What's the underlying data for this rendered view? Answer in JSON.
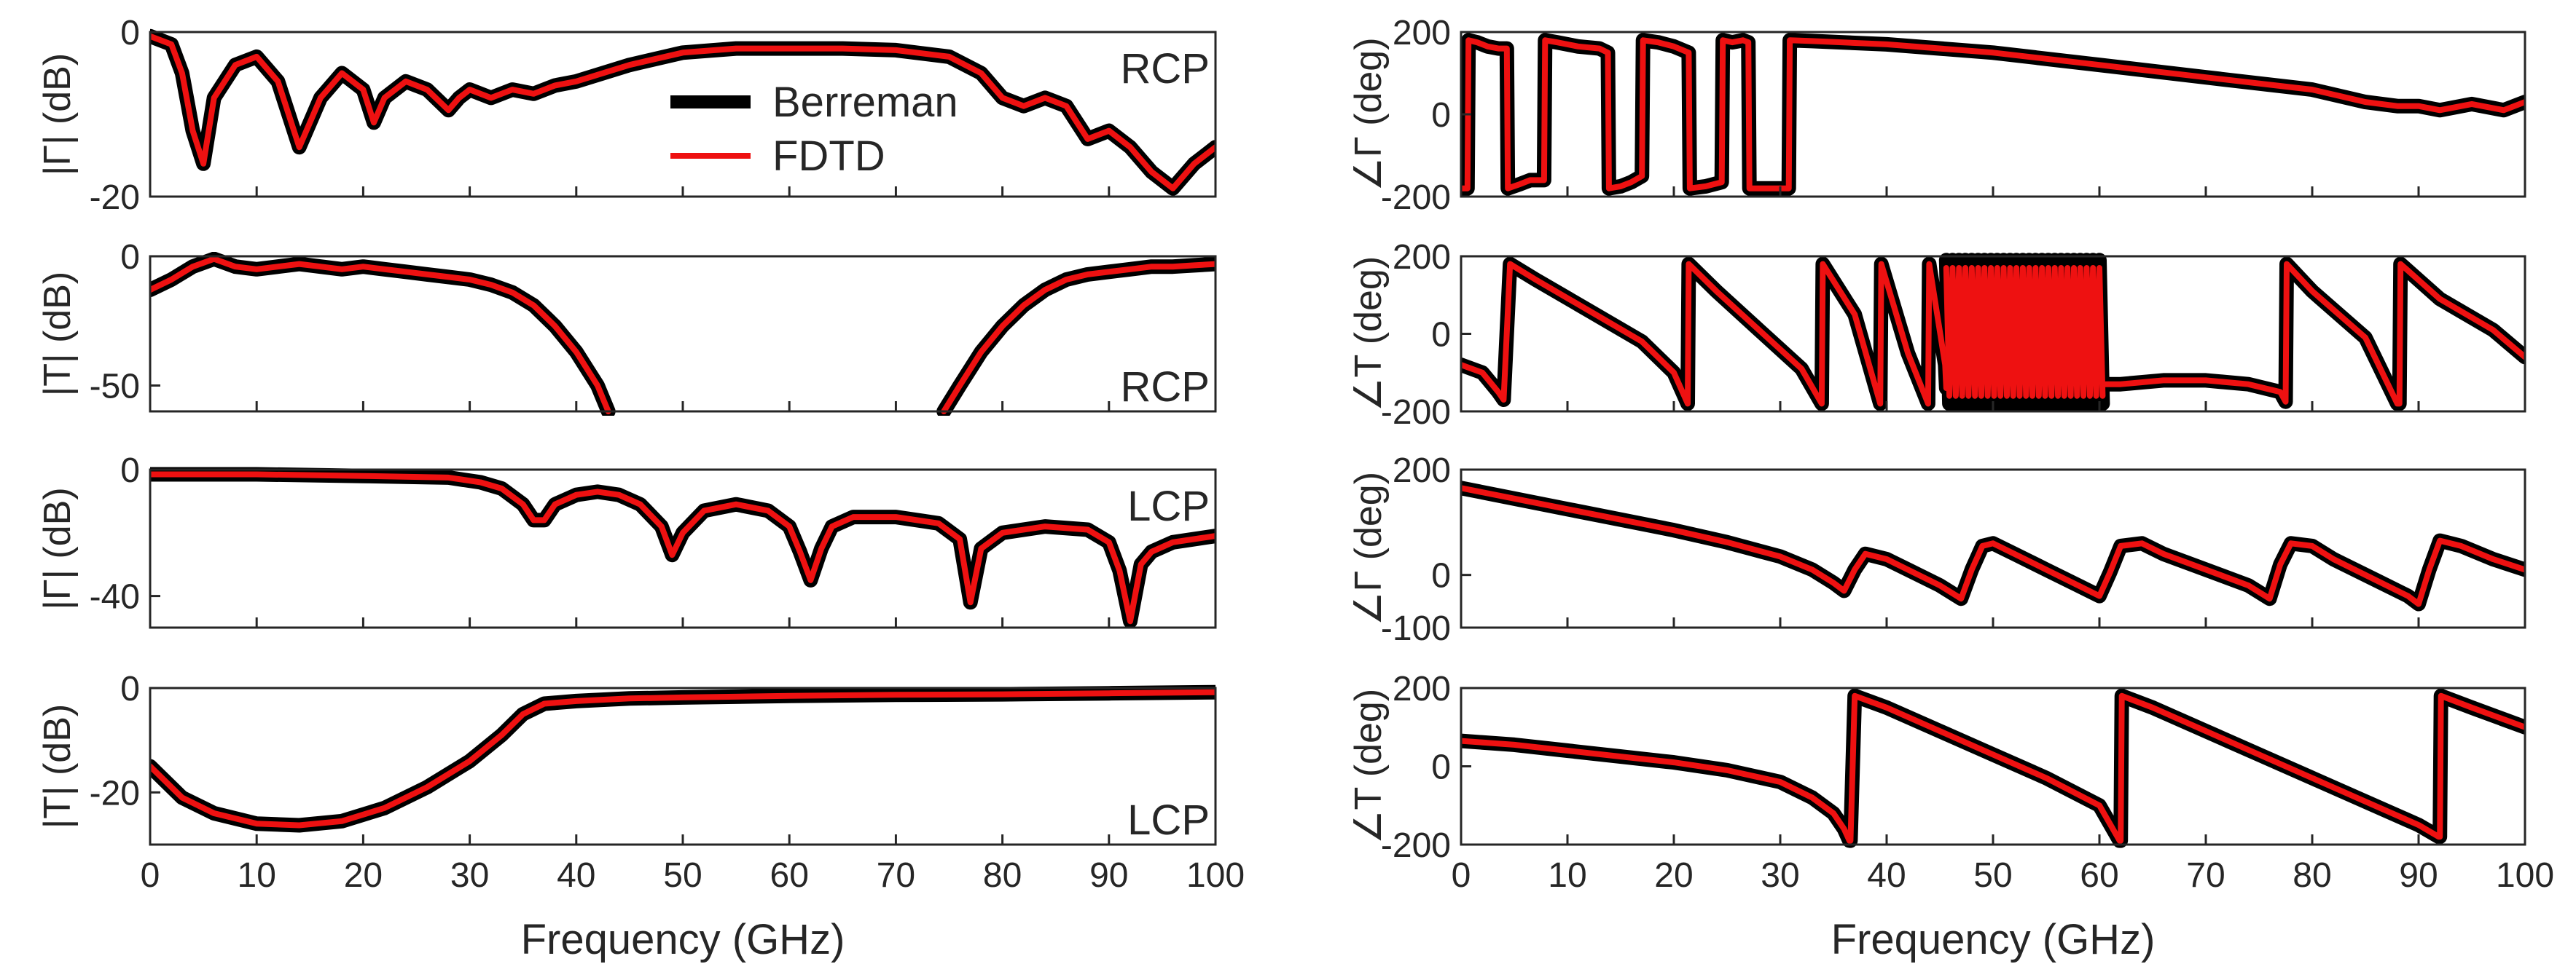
{
  "colors": {
    "berreman": "#000000",
    "fdtd": "#ee1111",
    "axis": "#262626"
  },
  "legend": {
    "entries": [
      {
        "label": "Berreman",
        "series": "berreman"
      },
      {
        "label": "FDTD",
        "series": "fdtd"
      }
    ]
  },
  "chart_data": [
    {
      "id": "mag-r-rcp",
      "type": "line",
      "tag": "RCP",
      "ylabel": "|Γ| (dB)",
      "xlim": [
        0,
        100
      ],
      "ylim": [
        -20,
        0
      ],
      "yticks": [
        -20,
        0
      ],
      "xticks": [],
      "xlabel": "",
      "series_keys": [
        "berreman",
        "fdtd"
      ],
      "x": [
        0,
        2,
        3,
        4,
        5,
        6,
        8,
        10,
        12,
        14,
        16,
        18,
        20,
        21,
        22,
        24,
        26,
        28,
        29,
        30,
        32,
        34,
        36,
        38,
        40,
        45,
        50,
        55,
        60,
        65,
        70,
        75,
        78,
        80,
        82,
        84,
        86,
        88,
        90,
        92,
        94,
        96,
        98,
        100
      ],
      "y": [
        -0.5,
        -1.5,
        -5,
        -12,
        -16,
        -8,
        -4,
        -3,
        -6,
        -14,
        -8,
        -5,
        -7,
        -11,
        -8,
        -6,
        -7,
        -9.5,
        -8,
        -7,
        -8,
        -7,
        -7.5,
        -6.5,
        -6,
        -4,
        -2.5,
        -2,
        -2,
        -2,
        -2.2,
        -3,
        -5,
        -8,
        -9,
        -8,
        -9,
        -13,
        -12,
        -14,
        -17,
        -19,
        -16,
        -14
      ]
    },
    {
      "id": "mag-t-rcp",
      "type": "line",
      "tag": "RCP",
      "ylabel": "|T| (dB)",
      "xlim": [
        0,
        100
      ],
      "ylim": [
        -60,
        0
      ],
      "yticks": [
        -50,
        0
      ],
      "xticks": [],
      "xlabel": "",
      "series_keys": [
        "berreman",
        "fdtd"
      ],
      "segments": [
        {
          "x": [
            0,
            2,
            4,
            6,
            8,
            10,
            12,
            14,
            16,
            18,
            20,
            22,
            24,
            26,
            28,
            30,
            32,
            34,
            36,
            38,
            40,
            42,
            43
          ],
          "y": [
            -13,
            -9,
            -4,
            -1,
            -4,
            -5,
            -4,
            -3,
            -4,
            -5,
            -4,
            -5,
            -6,
            -7,
            -8,
            -9,
            -11,
            -14,
            -19,
            -27,
            -37,
            -50,
            -60
          ]
        },
        {
          "x": [
            74.5,
            76,
            78,
            80,
            82,
            84,
            86,
            88,
            90,
            92,
            94,
            96,
            98,
            100
          ],
          "y": [
            -60,
            -50,
            -37,
            -27,
            -19,
            -13,
            -9,
            -7,
            -6,
            -5,
            -4,
            -4,
            -3.5,
            -3
          ]
        }
      ]
    },
    {
      "id": "mag-r-lcp",
      "type": "line",
      "tag": "LCP",
      "ylabel": "|Γ| (dB)",
      "xlim": [
        0,
        100
      ],
      "ylim": [
        -50,
        0
      ],
      "yticks": [
        -40,
        0
      ],
      "xticks": [],
      "xlabel": "",
      "series_keys": [
        "berreman",
        "fdtd"
      ],
      "x": [
        0,
        10,
        20,
        28,
        31,
        33,
        35,
        36,
        37,
        38,
        40,
        42,
        44,
        46,
        48,
        49,
        50,
        52,
        55,
        58,
        60,
        61,
        62,
        63,
        64,
        66,
        70,
        74,
        76,
        77,
        78,
        80,
        84,
        88,
        90,
        91,
        92,
        93,
        94,
        96,
        100
      ],
      "y": [
        -1.5,
        -1.5,
        -2,
        -2.5,
        -4,
        -6,
        -11,
        -16,
        -16,
        -11,
        -8,
        -7,
        -8,
        -11,
        -18,
        -27,
        -20,
        -13,
        -11,
        -13,
        -18,
        -26,
        -35,
        -25,
        -18,
        -15,
        -15,
        -17,
        -22,
        -42,
        -25,
        -20,
        -18,
        -19,
        -23,
        -32,
        -48,
        -30,
        -26,
        -23,
        -21
      ]
    },
    {
      "id": "mag-t-lcp",
      "type": "line",
      "tag": "LCP",
      "ylabel": "|T| (dB)",
      "xlim": [
        0,
        100
      ],
      "ylim": [
        -30,
        0
      ],
      "yticks": [
        -20,
        0
      ],
      "xticks": [
        0,
        10,
        20,
        30,
        40,
        50,
        60,
        70,
        80,
        90,
        100
      ],
      "xlabel": "Frequency (GHz)",
      "series_keys": [
        "berreman",
        "fdtd"
      ],
      "x": [
        0,
        3,
        6,
        10,
        14,
        18,
        22,
        26,
        30,
        33,
        35,
        37,
        40,
        45,
        50,
        60,
        70,
        80,
        90,
        100
      ],
      "y": [
        -15,
        -21,
        -24,
        -26,
        -26.3,
        -25.5,
        -23,
        -19,
        -14,
        -9,
        -5,
        -3,
        -2.5,
        -2,
        -1.8,
        -1.5,
        -1.3,
        -1.2,
        -1,
        -0.8
      ]
    },
    {
      "id": "phase-r-rcp",
      "type": "line",
      "ylabel": "∠Γ (deg)",
      "xlim": [
        0,
        100
      ],
      "ylim": [
        -200,
        200
      ],
      "yticks": [
        -200,
        0,
        200
      ],
      "xticks": [],
      "xlabel": "",
      "series_keys": [
        "berreman",
        "fdtd"
      ],
      "x": [
        0,
        0.6,
        0.7,
        1.5,
        2.5,
        3.5,
        4.3,
        4.4,
        5.5,
        6.5,
        7.8,
        7.9,
        9,
        11,
        13,
        13.8,
        13.9,
        15,
        16,
        17,
        17.1,
        18.5,
        20,
        21.4,
        21.5,
        23,
        24.5,
        24.6,
        25.5,
        26.5,
        27,
        27.1,
        28,
        29,
        30,
        30.8,
        30.9,
        33,
        40,
        50,
        60,
        70,
        80,
        85,
        88,
        90,
        92,
        95,
        98,
        100
      ],
      "y": [
        -180,
        -180,
        180,
        175,
        165,
        160,
        160,
        -180,
        -170,
        -160,
        -160,
        180,
        175,
        165,
        160,
        150,
        -180,
        -175,
        -165,
        -150,
        180,
        175,
        165,
        150,
        -180,
        -175,
        -165,
        180,
        175,
        180,
        175,
        -180,
        -180,
        -180,
        -180,
        -180,
        180,
        178,
        170,
        150,
        120,
        90,
        60,
        30,
        20,
        20,
        10,
        25,
        10,
        30
      ]
    },
    {
      "id": "phase-t-rcp",
      "type": "line",
      "ylabel": "∠T (deg)",
      "xlim": [
        0,
        100
      ],
      "ylim": [
        -200,
        200
      ],
      "yticks": [
        -200,
        0,
        200
      ],
      "xticks": [],
      "xlabel": "",
      "series_keys": [
        "berreman",
        "fdtd"
      ],
      "x": [
        0,
        2,
        3.5,
        4,
        4.6,
        7,
        12,
        17,
        20,
        21.3,
        21.4,
        24,
        28,
        32,
        33.9,
        34,
        37,
        39.4,
        39.5,
        42,
        43.9,
        44,
        45.5,
        45.6
      ],
      "y": [
        -80,
        -100,
        -150,
        -170,
        180,
        140,
        60,
        -20,
        -100,
        -180,
        180,
        110,
        10,
        -90,
        -180,
        180,
        50,
        -180,
        180,
        -50,
        -180,
        180,
        -80,
        -140
      ],
      "noise": {
        "from": 45.6,
        "to": 60.4,
        "fdtd": [
          -160,
          170
        ],
        "berreman": [
          -180,
          190
        ]
      },
      "x2": [
        60.4,
        62,
        66,
        70,
        74,
        77,
        77.5,
        77.6,
        80,
        85,
        88,
        88.2,
        88.3,
        92,
        97,
        100
      ],
      "y2": [
        -130,
        -130,
        -120,
        -120,
        -130,
        -150,
        -175,
        180,
        110,
        -10,
        -180,
        -180,
        180,
        90,
        10,
        -60
      ]
    },
    {
      "id": "phase-r-lcp",
      "type": "line",
      "ylabel": "∠Γ (deg)",
      "xlim": [
        0,
        100
      ],
      "ylim": [
        -100,
        200
      ],
      "yticks": [
        -100,
        0,
        200
      ],
      "xticks": [],
      "xlabel": "",
      "series_keys": [
        "berreman",
        "fdtd"
      ],
      "x": [
        0,
        5,
        10,
        15,
        20,
        25,
        30,
        33,
        35,
        36,
        37,
        38,
        40,
        42,
        45,
        47,
        48,
        49,
        50,
        52,
        55,
        58,
        60,
        61,
        62,
        64,
        66,
        70,
        74,
        76,
        77,
        78,
        80,
        82,
        86,
        89,
        90,
        91,
        92,
        94,
        97,
        100
      ],
      "y": [
        165,
        145,
        125,
        105,
        85,
        62,
        35,
        10,
        -15,
        -30,
        10,
        40,
        30,
        10,
        -20,
        -45,
        10,
        55,
        60,
        40,
        10,
        -20,
        -40,
        5,
        55,
        60,
        40,
        10,
        -20,
        -45,
        20,
        60,
        55,
        30,
        -10,
        -40,
        -55,
        10,
        65,
        55,
        30,
        10
      ]
    },
    {
      "id": "phase-t-lcp",
      "type": "line",
      "ylabel": "∠T (deg)",
      "xlim": [
        0,
        100
      ],
      "ylim": [
        -200,
        200
      ],
      "yticks": [
        -200,
        0,
        200
      ],
      "xticks": [
        0,
        10,
        20,
        30,
        40,
        50,
        60,
        70,
        80,
        90,
        100
      ],
      "xlabel": "Frequency (GHz)",
      "series_keys": [
        "berreman",
        "fdtd"
      ],
      "x": [
        0,
        5,
        10,
        15,
        20,
        25,
        30,
        33,
        35,
        36,
        36.5,
        36.6,
        37,
        40,
        45,
        50,
        55,
        60,
        61.9,
        62,
        62.1,
        65,
        70,
        75,
        80,
        85,
        90,
        91.9,
        92,
        92.1,
        95,
        100
      ],
      "y": [
        65,
        55,
        40,
        25,
        10,
        -10,
        -40,
        -80,
        -120,
        -160,
        -190,
        -190,
        180,
        150,
        90,
        30,
        -30,
        -100,
        -190,
        -190,
        180,
        150,
        90,
        30,
        -30,
        -90,
        -150,
        -180,
        -180,
        180,
        150,
        100
      ]
    }
  ]
}
